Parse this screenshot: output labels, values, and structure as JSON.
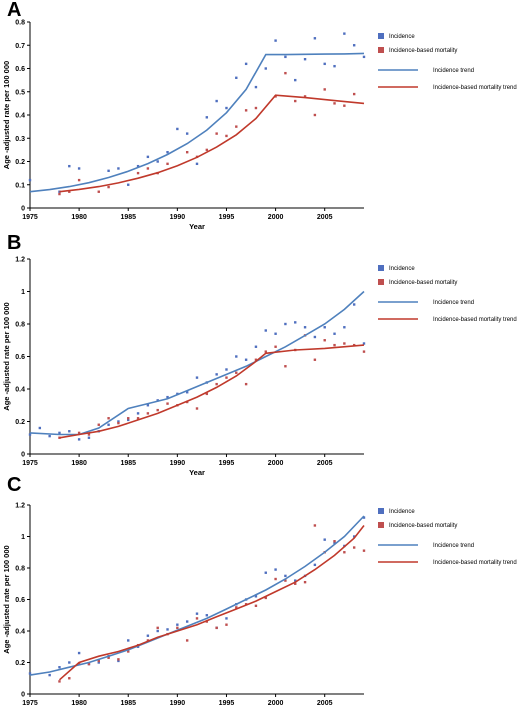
{
  "chart_data": [
    {
      "panel": "A",
      "type": "line",
      "xlabel": "Year",
      "ylabel": "Age -adjusted rate per 100 000",
      "xlim": [
        1975,
        2009
      ],
      "ylim": [
        0,
        0.8
      ],
      "xticks": [
        "1975",
        "1980",
        "1985",
        "1990",
        "1995",
        "2000",
        "2005"
      ],
      "yticks": [
        "0",
        "0.1",
        "0.2",
        "0.3",
        "0.4",
        "0.5",
        "0.6",
        "0.7",
        "0.8"
      ],
      "grid": false,
      "legend_position": "right",
      "legend": [
        "Incidence",
        "Incidence-based mortality",
        "Incidence trend",
        "Incidence-based mortality trend"
      ],
      "series": [
        {
          "name": "Incidence",
          "kind": "scatter",
          "color": "#4f6fbf",
          "x": [
            1975,
            1978,
            1979,
            1980,
            1983,
            1984,
            1985,
            1986,
            1987,
            1988,
            1989,
            1990,
            1991,
            1992,
            1993,
            1994,
            1995,
            1996,
            1997,
            1998,
            1999,
            2000,
            2001,
            2002,
            2003,
            2004,
            2005,
            2006,
            2007,
            2008,
            2009
          ],
          "y": [
            0.12,
            0.07,
            0.18,
            0.17,
            0.16,
            0.17,
            0.1,
            0.18,
            0.22,
            0.2,
            0.24,
            0.34,
            0.32,
            0.19,
            0.39,
            0.46,
            0.43,
            0.56,
            0.62,
            0.52,
            0.6,
            0.72,
            0.65,
            0.55,
            0.64,
            0.73,
            0.62,
            0.61,
            0.75,
            0.7,
            0.65
          ]
        },
        {
          "name": "Incidence-based mortality",
          "kind": "scatter",
          "color": "#bf4f4f",
          "x": [
            1978,
            1979,
            1980,
            1982,
            1983,
            1986,
            1987,
            1988,
            1989,
            1991,
            1992,
            1993,
            1994,
            1995,
            1996,
            1997,
            1998,
            2000,
            2001,
            2002,
            2003,
            2004,
            2005,
            2006,
            2007,
            2008
          ],
          "y": [
            0.06,
            0.07,
            0.12,
            0.07,
            0.09,
            0.15,
            0.17,
            0.15,
            0.19,
            0.24,
            0.22,
            0.25,
            0.32,
            0.31,
            0.35,
            0.42,
            0.43,
            0.48,
            0.58,
            0.46,
            0.48,
            0.4,
            0.51,
            0.45,
            0.44,
            0.49
          ]
        },
        {
          "name": "Incidence trend",
          "kind": "line",
          "color": "#4f81bd",
          "x": [
            1975,
            1977,
            1979,
            1981,
            1983,
            1985,
            1987,
            1989,
            1991,
            1993,
            1995,
            1997,
            1999,
            2001,
            2003,
            2005,
            2007,
            2009
          ],
          "y": [
            0.07,
            0.079,
            0.092,
            0.109,
            0.131,
            0.158,
            0.191,
            0.23,
            0.277,
            0.335,
            0.41,
            0.51,
            0.66,
            0.66,
            0.661,
            0.662,
            0.663,
            0.665
          ]
        },
        {
          "name": "Incidence-based mortality trend",
          "kind": "line",
          "color": "#c0392b",
          "x": [
            1978,
            1980,
            1982,
            1984,
            1986,
            1988,
            1990,
            1992,
            1994,
            1996,
            1998,
            2000,
            2003,
            2006,
            2009
          ],
          "y": [
            0.07,
            0.08,
            0.092,
            0.108,
            0.128,
            0.152,
            0.182,
            0.218,
            0.262,
            0.315,
            0.385,
            0.485,
            0.475,
            0.462,
            0.45
          ]
        }
      ]
    },
    {
      "panel": "B",
      "type": "line",
      "xlabel": "Year",
      "ylabel": "Age -adjusted rate per 100 000",
      "xlim": [
        1975,
        2009
      ],
      "ylim": [
        0,
        1.2
      ],
      "xticks": [
        "1975",
        "1980",
        "1985",
        "1990",
        "1995",
        "2000",
        "2005"
      ],
      "yticks": [
        "0",
        "0.2",
        "0.4",
        "0.6",
        "0.8",
        "1",
        "1.2"
      ],
      "grid": false,
      "legend_position": "right",
      "legend": [
        "Incidence",
        "Incidence-based mortality",
        "Incidence trend",
        "Incidence-based mortality trend"
      ],
      "series": [
        {
          "name": "Incidence",
          "kind": "scatter",
          "color": "#4f6fbf",
          "x": [
            1975,
            1976,
            1977,
            1978,
            1979,
            1980,
            1981,
            1982,
            1983,
            1984,
            1985,
            1986,
            1987,
            1988,
            1989,
            1990,
            1991,
            1992,
            1993,
            1994,
            1995,
            1996,
            1997,
            1998,
            1999,
            2000,
            2001,
            2002,
            2003,
            2004,
            2005,
            2006,
            2007,
            2008,
            2009
          ],
          "y": [
            0.12,
            0.16,
            0.11,
            0.13,
            0.14,
            0.09,
            0.1,
            0.14,
            0.18,
            0.2,
            0.21,
            0.25,
            0.3,
            0.33,
            0.35,
            0.37,
            0.38,
            0.47,
            0.44,
            0.49,
            0.52,
            0.6,
            0.58,
            0.66,
            0.76,
            0.74,
            0.8,
            0.81,
            0.78,
            0.72,
            0.78,
            0.74,
            0.78,
            0.92,
            0.68
          ]
        },
        {
          "name": "Incidence-based mortality",
          "kind": "scatter",
          "color": "#bf4f4f",
          "x": [
            1978,
            1980,
            1981,
            1982,
            1983,
            1984,
            1985,
            1986,
            1987,
            1988,
            1989,
            1990,
            1991,
            1992,
            1993,
            1994,
            1995,
            1996,
            1997,
            1998,
            1999,
            2000,
            2001,
            2002,
            2003,
            2004,
            2005,
            2006,
            2007,
            2008,
            2009
          ],
          "y": [
            0.1,
            0.13,
            0.12,
            0.18,
            0.22,
            0.19,
            0.22,
            0.22,
            0.25,
            0.27,
            0.31,
            0.3,
            0.32,
            0.28,
            0.37,
            0.43,
            0.47,
            0.5,
            0.43,
            0.58,
            0.63,
            0.66,
            0.54,
            0.64,
            0.73,
            0.58,
            0.7,
            0.67,
            0.68,
            0.67,
            0.63
          ]
        },
        {
          "name": "Incidence trend",
          "kind": "line",
          "color": "#4f81bd",
          "x": [
            1975,
            1978,
            1980,
            1982,
            1985,
            1987,
            1989,
            1991,
            1993,
            1995,
            1997,
            1999,
            2001,
            2003,
            2005,
            2007,
            2009
          ],
          "y": [
            0.13,
            0.12,
            0.12,
            0.16,
            0.28,
            0.31,
            0.34,
            0.39,
            0.44,
            0.49,
            0.54,
            0.6,
            0.66,
            0.73,
            0.8,
            0.89,
            1.0
          ]
        },
        {
          "name": "Incidence-based mortality trend",
          "kind": "line",
          "color": "#c0392b",
          "x": [
            1978,
            1980,
            1982,
            1984,
            1986,
            1988,
            1990,
            1992,
            1994,
            1996,
            1998,
            1999,
            2002,
            2005,
            2009
          ],
          "y": [
            0.1,
            0.12,
            0.14,
            0.17,
            0.21,
            0.25,
            0.3,
            0.35,
            0.41,
            0.48,
            0.57,
            0.62,
            0.64,
            0.65,
            0.67
          ]
        }
      ]
    },
    {
      "panel": "C",
      "type": "line",
      "xlabel": "Year",
      "ylabel": "Age -adjusted rate per 100 000",
      "xlim": [
        1975,
        2009
      ],
      "ylim": [
        0,
        1.2
      ],
      "xticks": [
        "1975",
        "1980",
        "1985",
        "1990",
        "1995",
        "2000",
        "2005"
      ],
      "yticks": [
        "0",
        "0.2",
        "0.4",
        "0.6",
        "0.8",
        "1",
        "1.2"
      ],
      "grid": false,
      "legend_position": "right",
      "legend": [
        "Incidence",
        "Incidence-based mortality",
        "Incidence trend",
        "Incidence-based mortality trend"
      ],
      "series": [
        {
          "name": "Incidence",
          "kind": "scatter",
          "color": "#4f6fbf",
          "x": [
            1975,
            1977,
            1978,
            1979,
            1980,
            1981,
            1982,
            1983,
            1984,
            1985,
            1986,
            1987,
            1988,
            1989,
            1990,
            1991,
            1992,
            1993,
            1994,
            1995,
            1996,
            1997,
            1998,
            1999,
            2000,
            2001,
            2002,
            2003,
            2004,
            2005,
            2006,
            2007,
            2008,
            2009
          ],
          "y": [
            0.13,
            0.12,
            0.17,
            0.2,
            0.26,
            0.19,
            0.2,
            0.24,
            0.21,
            0.34,
            0.3,
            0.37,
            0.4,
            0.41,
            0.44,
            0.46,
            0.51,
            0.5,
            0.42,
            0.48,
            0.57,
            0.6,
            0.62,
            0.77,
            0.79,
            0.75,
            0.72,
            0.75,
            0.82,
            0.98,
            0.96,
            0.94,
            1.0,
            1.12
          ]
        },
        {
          "name": "Incidence-based mortality",
          "kind": "scatter",
          "color": "#bf4f4f",
          "x": [
            1978,
            1979,
            1980,
            1981,
            1982,
            1983,
            1984,
            1985,
            1986,
            1987,
            1988,
            1989,
            1990,
            1991,
            1992,
            1993,
            1994,
            1995,
            1996,
            1997,
            1998,
            1999,
            2000,
            2001,
            2002,
            2003,
            2004,
            2005,
            2006,
            2007,
            2008,
            2009
          ],
          "y": [
            0.08,
            0.1,
            0.19,
            0.19,
            0.21,
            0.23,
            0.22,
            0.27,
            0.31,
            0.34,
            0.42,
            0.38,
            0.42,
            0.34,
            0.48,
            0.46,
            0.42,
            0.44,
            0.55,
            0.57,
            0.56,
            0.61,
            0.73,
            0.72,
            0.7,
            0.71,
            1.07,
            0.9,
            0.97,
            0.9,
            0.93,
            0.91
          ]
        },
        {
          "name": "Incidence trend",
          "kind": "line",
          "color": "#4f81bd",
          "x": [
            1975,
            1977,
            1979,
            1981,
            1983,
            1985,
            1987,
            1989,
            1991,
            1993,
            1995,
            1997,
            1999,
            2001,
            2003,
            2005,
            2007,
            2009
          ],
          "y": [
            0.12,
            0.14,
            0.17,
            0.2,
            0.24,
            0.28,
            0.33,
            0.38,
            0.43,
            0.48,
            0.54,
            0.6,
            0.66,
            0.73,
            0.81,
            0.9,
            1.0,
            1.13
          ]
        },
        {
          "name": "Incidence-based mortality trend",
          "kind": "line",
          "color": "#c0392b",
          "x": [
            1978,
            1980,
            1982,
            1984,
            1986,
            1988,
            1990,
            1992,
            1994,
            1996,
            1998,
            2000,
            2002,
            2004,
            2006,
            2008,
            2009
          ],
          "y": [
            0.09,
            0.2,
            0.24,
            0.27,
            0.31,
            0.36,
            0.4,
            0.44,
            0.49,
            0.54,
            0.59,
            0.65,
            0.71,
            0.79,
            0.88,
            0.99,
            1.07
          ]
        }
      ]
    }
  ]
}
